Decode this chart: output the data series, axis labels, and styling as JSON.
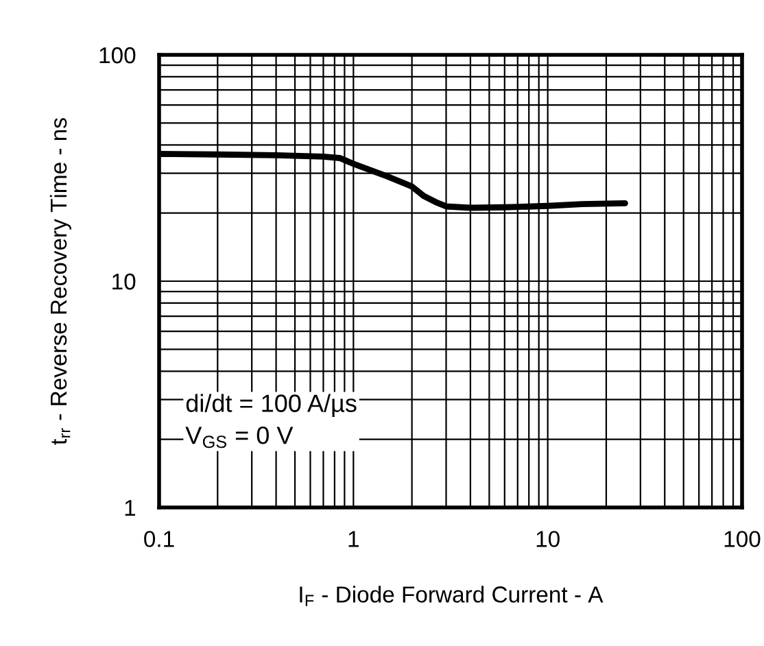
{
  "chart_data": {
    "type": "line",
    "xlabel": "I$_{F}$ - Diode Forward Current - A",
    "ylabel": "t$_{rr}$ - Reverse Recovery Time - ns",
    "annotations": [
      "di/dt = 100 A/µs\nV$_{GS}$ = 0 V"
    ],
    "log": "xy",
    "grid": true,
    "marker": "none",
    "line_style": "solid",
    "xlim": [
      0.1,
      100
    ],
    "ylim": [
      1,
      100
    ],
    "xticks": [
      0.1,
      {
        "value": 0.2,
        "label": null
      },
      {
        "value": 0.3,
        "label": null
      },
      {
        "value": 0.4,
        "label": null
      },
      {
        "value": 0.5,
        "label": null
      },
      {
        "value": 0.6,
        "label": null
      },
      {
        "value": 0.7,
        "label": null
      },
      {
        "value": 0.8,
        "label": null
      },
      {
        "value": 0.9,
        "label": null
      },
      1,
      {
        "value": 2,
        "label": null
      },
      {
        "value": 3,
        "label": null
      },
      {
        "value": 4,
        "label": null
      },
      {
        "value": 5,
        "label": null
      },
      {
        "value": 6,
        "label": null
      },
      {
        "value": 7,
        "label": null
      },
      {
        "value": 8,
        "label": null
      },
      {
        "value": 9,
        "label": null
      },
      10,
      {
        "value": 20,
        "label": null
      },
      {
        "value": 30,
        "label": null
      },
      {
        "value": 40,
        "label": null
      },
      {
        "value": 50,
        "label": null
      },
      {
        "value": 60,
        "label": null
      },
      {
        "value": 70,
        "label": null
      },
      {
        "value": 80,
        "label": null
      },
      {
        "value": 90,
        "label": null
      },
      100
    ],
    "yticks": [
      1,
      {
        "value": 2,
        "label": null
      },
      {
        "value": 3,
        "label": null
      },
      {
        "value": 4,
        "label": null
      },
      {
        "value": 5,
        "label": null
      },
      {
        "value": 6,
        "label": null
      },
      {
        "value": 7,
        "label": null
      },
      {
        "value": 8,
        "label": null
      },
      {
        "value": 9,
        "label": null
      },
      10,
      {
        "value": 20,
        "label": null
      },
      {
        "value": 30,
        "label": null
      },
      {
        "value": 40,
        "label": null
      },
      {
        "value": 50,
        "label": null
      },
      {
        "value": 60,
        "label": null
      },
      {
        "value": 70,
        "label": null
      },
      {
        "value": 80,
        "label": null
      },
      {
        "value": 90,
        "label": null
      },
      100
    ],
    "series": [
      {
        "color": "#000000",
        "x": [
          0.1,
          0.2,
          0.4,
          0.7,
          0.85,
          1.0,
          1.5,
          2.0,
          2.3,
          2.7,
          3.0,
          4.0,
          6.0,
          10,
          15,
          25
        ],
        "values": [
          36.5,
          36.3,
          36.0,
          35.5,
          35.0,
          33.0,
          29.0,
          26.2,
          23.8,
          22.2,
          21.4,
          21.1,
          21.2,
          21.5,
          21.9,
          22.1
        ]
      }
    ]
  }
}
